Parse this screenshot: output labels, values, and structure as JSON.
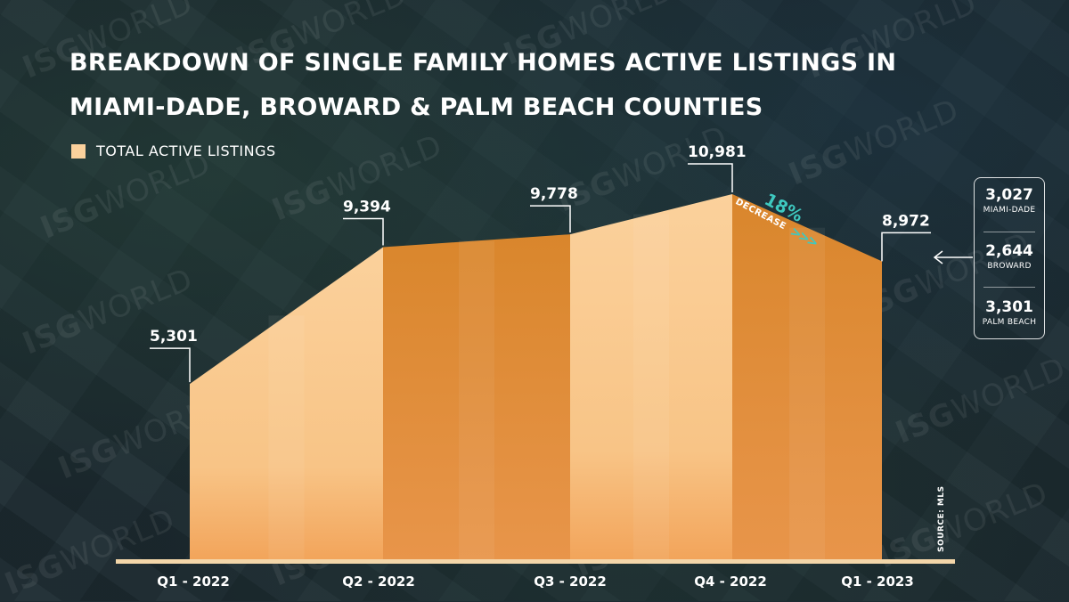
{
  "title": {
    "line1": "BREAKDOWN OF SINGLE FAMILY HOMES ACTIVE LISTINGS IN",
    "line2": "MIAMI-DADE, BROWARD & PALM BEACH COUNTIES"
  },
  "legend": {
    "label": "TOTAL ACTIVE LISTINGS"
  },
  "source": "SOURCE: MLS",
  "watermark": {
    "bold": "ISG",
    "thin": "WORLD"
  },
  "annotation": {
    "percent": "18%",
    "word": "DECREASE",
    "arrows": ">>>"
  },
  "breakdown": [
    {
      "value": "3,027",
      "label": "MIAMI-DADE"
    },
    {
      "value": "2,644",
      "label": "BROWARD"
    },
    {
      "value": "3,301",
      "label": "PALM BEACH"
    }
  ],
  "colors": {
    "fill_light": "#fbd19c",
    "fill_dark": "#d9862c",
    "baseline": "#f3d6a9",
    "accent": "#3ec9c0",
    "text": "#ffffff"
  },
  "chart_data": {
    "type": "area",
    "title": "BREAKDOWN OF SINGLE FAMILY HOMES ACTIVE LISTINGS IN MIAMI-DADE, BROWARD & PALM BEACH COUNTIES",
    "categories": [
      "Q1 - 2022",
      "Q2 - 2022",
      "Q3 - 2022",
      "Q4 - 2022",
      "Q1 - 2023"
    ],
    "series": [
      {
        "name": "TOTAL ACTIVE LISTINGS",
        "values": [
          5301,
          9394,
          9778,
          10981,
          8972
        ]
      }
    ],
    "value_labels": [
      "5,301",
      "9,394",
      "9,778",
      "10,981",
      "8,972"
    ],
    "ylim": [
      0,
      11000
    ],
    "grid": false,
    "legend": "top-left"
  }
}
